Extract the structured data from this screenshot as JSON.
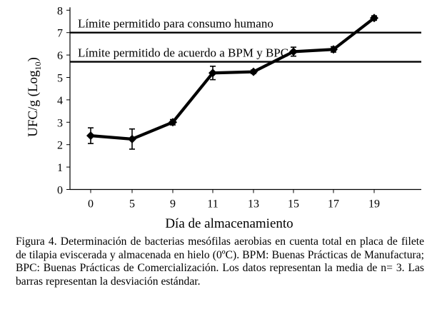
{
  "chart_data": {
    "type": "line",
    "xlabel": "Día de almacenamiento",
    "ylabel_main": "UFC/g (Log",
    "ylabel_sub": "10",
    "ylabel_close": ")",
    "x_ticks": [
      "0",
      "5",
      "9",
      "11",
      "13",
      "15",
      "17",
      "19"
    ],
    "y_ticks": [
      "0",
      "1",
      "2",
      "3",
      "4",
      "5",
      "6",
      "7",
      "8"
    ],
    "ylim": [
      0,
      8
    ],
    "series": [
      {
        "x": [
          0,
          5,
          9,
          11,
          13,
          15,
          17,
          19
        ],
        "values": [
          2.4,
          2.25,
          3.0,
          5.2,
          5.25,
          6.15,
          6.25,
          7.65
        ],
        "error": [
          0.35,
          0.45,
          0.12,
          0.3,
          0.08,
          0.2,
          0.12,
          0.1
        ]
      }
    ],
    "reference_lines": [
      {
        "y": 7.0,
        "label": "Límite permitido para consumo humano"
      },
      {
        "y": 5.7,
        "label": "Límite permitido de acuerdo a BPM y BPC"
      }
    ],
    "grid": false,
    "legend": "none"
  },
  "caption": "Figura 4. Determinación de bacterias mesófilas aerobias en cuenta total en placa de filete de tilapia eviscerada y almacenada en hielo (0ºC). BPM: Buenas Prácticas de Manufactura; BPC: Buenas Prácticas de Comercialización. Los datos representan la media de n= 3. Las barras representan la desviación estándar."
}
